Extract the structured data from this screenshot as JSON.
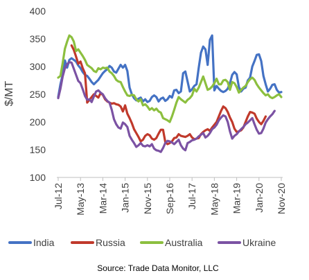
{
  "chart_data": {
    "type": "line",
    "title": "",
    "xlabel": "",
    "ylabel": "$/MT",
    "ylim": [
      100,
      400
    ],
    "yticks": [
      100,
      150,
      200,
      250,
      300,
      350,
      400
    ],
    "grid": false,
    "legend_position": "bottom",
    "source": "Source: Trade Data Monitor, LLC",
    "x_tick_labels": [
      "Jul-12",
      "May-13",
      "Mar-14",
      "Jan-15",
      "Nov-15",
      "Sep-16",
      "Jul-17",
      "May-18",
      "Mar-19",
      "Jan-20",
      "Nov-20"
    ],
    "x_tick_index": [
      0,
      10,
      20,
      30,
      40,
      50,
      60,
      70,
      80,
      90,
      100
    ],
    "series": [
      {
        "name": "India",
        "color": "#4472C4",
        "start_index": 0,
        "values": [
          245,
          268,
          285,
          311,
          298,
          312,
          315,
          312,
          309,
          302,
          297,
          290,
          285,
          283,
          278,
          272,
          268,
          272,
          276,
          282,
          288,
          292,
          295,
          301,
          298,
          291,
          289,
          296,
          303,
          298,
          303,
          292,
          262,
          250,
          243,
          239,
          242,
          244,
          237,
          241,
          236,
          238,
          245,
          248,
          245,
          237,
          242,
          244,
          238,
          241,
          247,
          244,
          257,
          258,
          252,
          255,
          288,
          291,
          273,
          255,
          259,
          265,
          268,
          298,
          325,
          336,
          331,
          303,
          348,
          356,
          257,
          265,
          260,
          256,
          254,
          256,
          260,
          270,
          285,
          290,
          286,
          263,
          255,
          260,
          262,
          275,
          280,
          300,
          310,
          321,
          322,
          310,
          283,
          268,
          255,
          260,
          267,
          268,
          258,
          253,
          254
        ]
      },
      {
        "name": "Russia",
        "color": "#C0392B",
        "start_index": 6,
        "values": [
          338,
          330,
          318,
          305,
          309,
          297,
          288,
          235,
          240,
          245,
          250,
          247,
          244,
          252,
          249,
          241,
          237,
          235,
          233,
          234,
          232,
          231,
          228,
          219,
          230,
          215,
          207,
          198,
          187,
          180,
          173,
          165,
          168,
          175,
          178,
          176,
          170,
          168,
          171,
          179,
          186,
          186,
          164,
          160,
          162,
          165,
          171,
          172,
          178,
          175,
          174,
          173,
          175,
          178,
          172,
          169,
          170,
          171,
          178,
          182,
          185,
          187,
          184,
          190,
          195,
          200,
          210,
          220,
          228,
          225,
          218,
          208,
          200,
          188,
          182,
          183,
          185,
          190,
          200,
          210,
          218,
          217,
          215,
          206,
          200,
          196,
          202,
          210
        ]
      },
      {
        "name": "Australia",
        "color": "#8CBF3F",
        "start_index": 0,
        "values": [
          280,
          283,
          306,
          332,
          345,
          356,
          353,
          345,
          328,
          331,
          325,
          319,
          312,
          303,
          300,
          297,
          292,
          290,
          297,
          295,
          298,
          297,
          298,
          291,
          288,
          283,
          276,
          273,
          272,
          263,
          255,
          248,
          247,
          249,
          248,
          241,
          237,
          241,
          230,
          232,
          228,
          222,
          225,
          221,
          224,
          219,
          217,
          207,
          205,
          203,
          200,
          210,
          222,
          235,
          245,
          241,
          238,
          235,
          240,
          243,
          248,
          260,
          255,
          262,
          272,
          282,
          270,
          258,
          260,
          264,
          270,
          278,
          268,
          268,
          275,
          276,
          272,
          258,
          272,
          270,
          263,
          253,
          258,
          262,
          265,
          272,
          277,
          280,
          276,
          268,
          262,
          257,
          252,
          248,
          250,
          245,
          243,
          245,
          248,
          250,
          245
        ]
      },
      {
        "name": "Ukraine",
        "color": "#7B52A3",
        "start_index": 0,
        "values": [
          243,
          260,
          282,
          297,
          304,
          308,
          307,
          296,
          285,
          274,
          270,
          259,
          247,
          240,
          241,
          236,
          246,
          255,
          257,
          253,
          250,
          243,
          238,
          235,
          222,
          205,
          196,
          190,
          188,
          199,
          196,
          191,
          175,
          168,
          162,
          155,
          158,
          162,
          157,
          156,
          158,
          156,
          160,
          152,
          149,
          148,
          146,
          153,
          162,
          166,
          165,
          163,
          160,
          164,
          168,
          158,
          152,
          149,
          162,
          164,
          167,
          168,
          170,
          174,
          177,
          180,
          172,
          175,
          180,
          187,
          190,
          195,
          203,
          208,
          212,
          210,
          200,
          183,
          170,
          175,
          178,
          183,
          187,
          191,
          196,
          199,
          203,
          207,
          196,
          186,
          179,
          180,
          188,
          199,
          205,
          210,
          214,
          220
        ]
      }
    ]
  }
}
